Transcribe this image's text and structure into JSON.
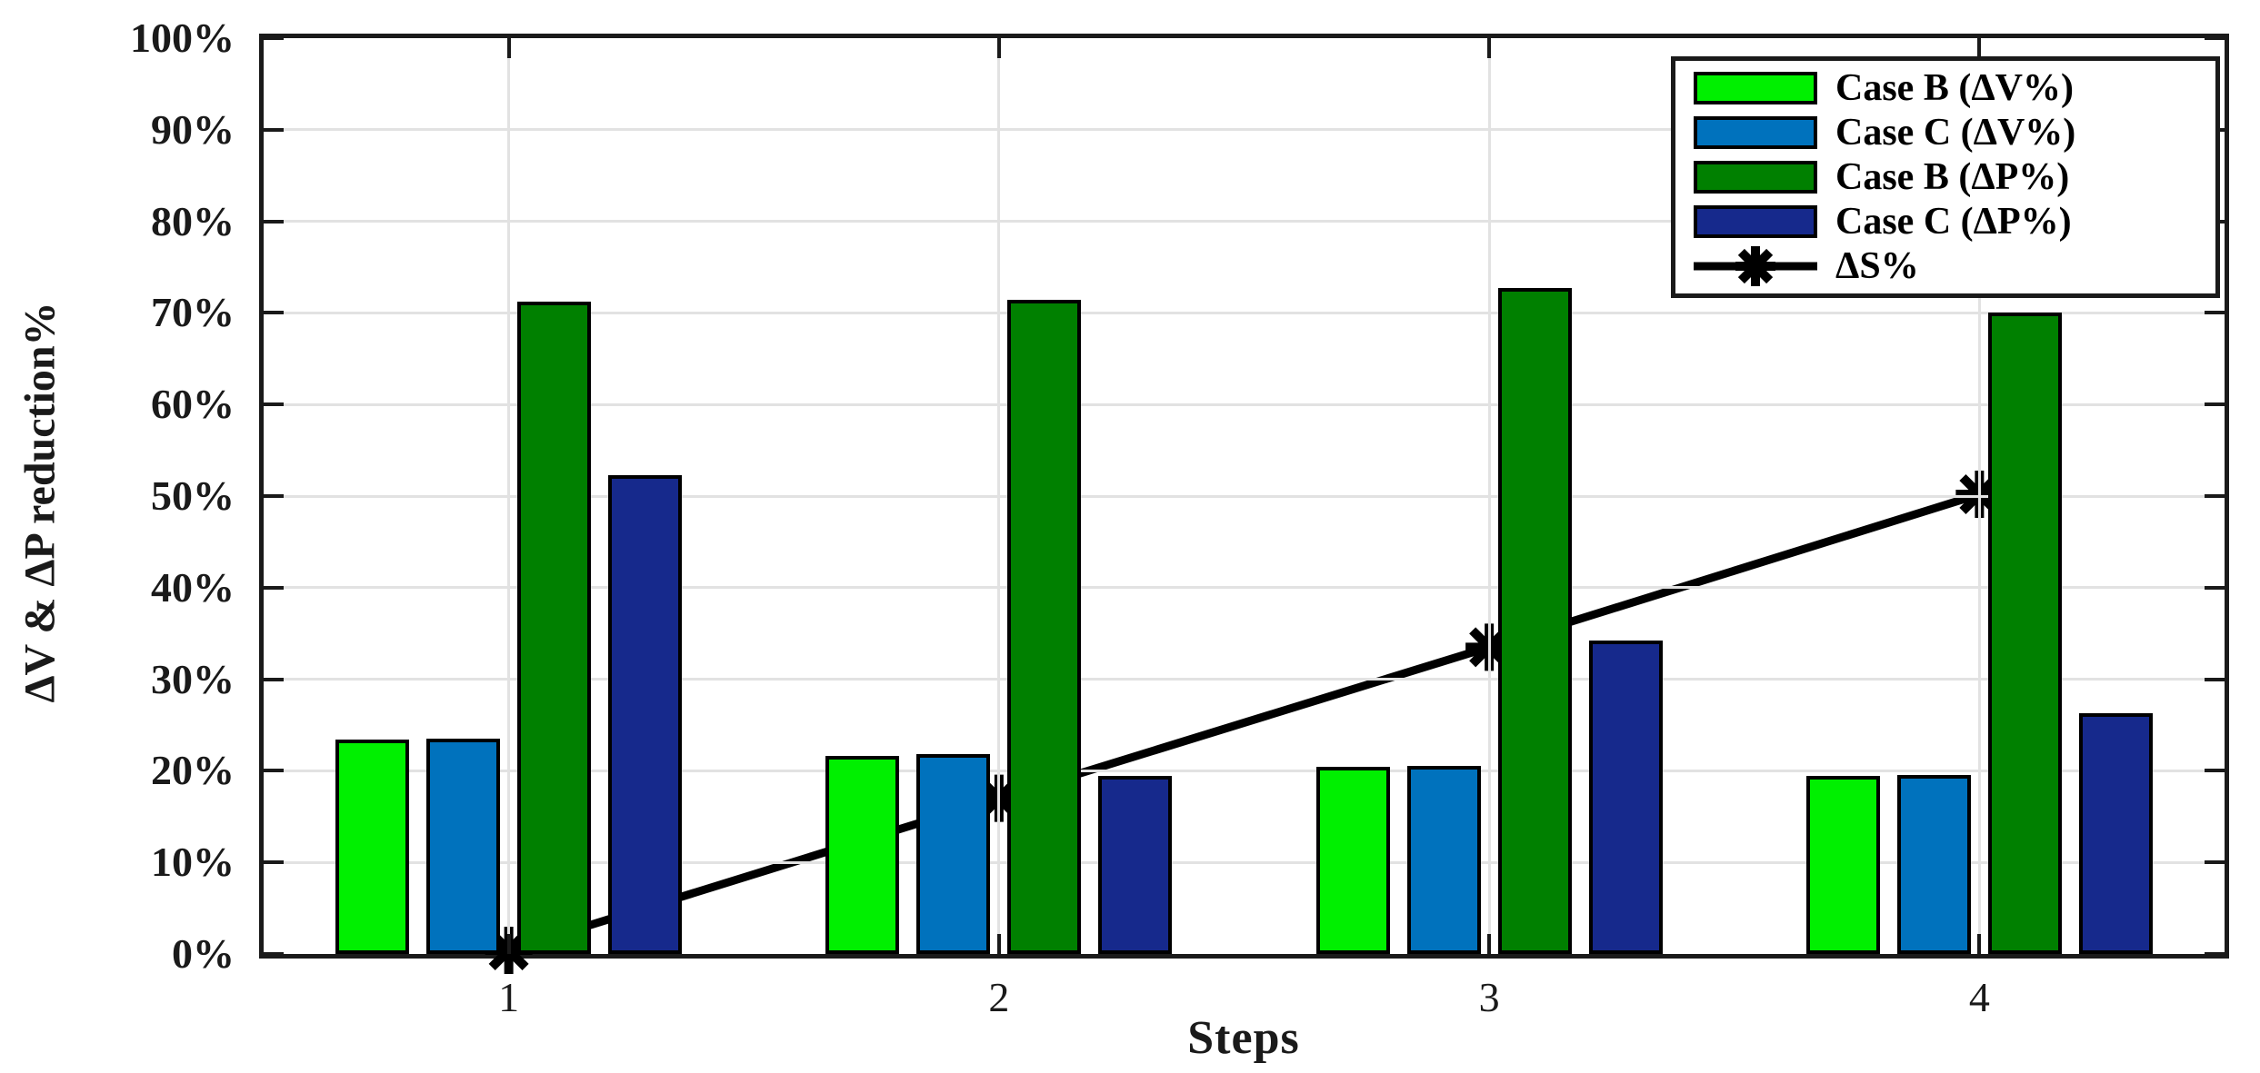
{
  "chart_data": {
    "type": "bar",
    "categories": [
      "1",
      "2",
      "3",
      "4"
    ],
    "series": [
      {
        "name": "Case B (ΔV%)",
        "kind": "bar",
        "color": "#00F000",
        "values": [
          23.4,
          21.6,
          20.4,
          19.4
        ]
      },
      {
        "name": "Case C (ΔV%)",
        "kind": "bar",
        "color": "#0072BD",
        "values": [
          23.5,
          21.8,
          20.5,
          19.5
        ]
      },
      {
        "name": "Case B (ΔP%)",
        "kind": "bar",
        "color": "#008000",
        "values": [
          71.2,
          71.4,
          72.7,
          70.0
        ]
      },
      {
        "name": "Case C (ΔP%)",
        "kind": "bar",
        "color": "#16298C",
        "values": [
          52.3,
          19.4,
          34.2,
          26.3
        ]
      },
      {
        "name": "ΔS%",
        "kind": "line",
        "color": "#000000",
        "values": [
          0.4,
          17.0,
          33.5,
          50.2
        ]
      }
    ],
    "title": "",
    "xlabel": "Steps",
    "ylabel": "ΔV & ΔP reduction%",
    "ylim": [
      0,
      100
    ],
    "ytick_step": 10,
    "ytick_labels": [
      "0%",
      "10%",
      "20%",
      "30%",
      "40%",
      "50%",
      "60%",
      "70%",
      "80%",
      "90%",
      "100%"
    ],
    "xtick_labels": [
      "1",
      "2",
      "3",
      "4"
    ],
    "grid": true,
    "legend_position": "top-right",
    "axis_color": "#1a1a1a",
    "grid_color": "#e2e2e2"
  }
}
